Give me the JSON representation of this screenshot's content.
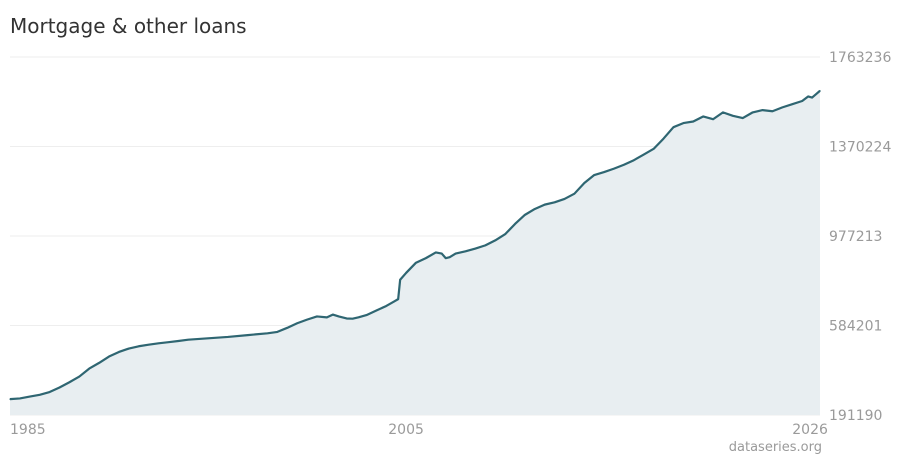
{
  "title": "Mortgage & other loans",
  "source": "dataseries.org",
  "colors": {
    "line": "#2f6672",
    "area": "#e8eef1",
    "grid": "#eeeeee",
    "axis_text": "#9a9a9a",
    "title": "#333333"
  },
  "chart_data": {
    "type": "area",
    "title": "Mortgage & other loans",
    "xlabel": "",
    "ylabel": "",
    "xlim": [
      1985.0,
      2025.9
    ],
    "ylim": [
      191190,
      1763236
    ],
    "x_ticks": [
      {
        "value": 1985,
        "label": "1985"
      },
      {
        "value": 2005,
        "label": "2005"
      },
      {
        "value": 2025.4,
        "label": "2026"
      }
    ],
    "y_ticks": [
      {
        "value": 1763236,
        "label": "1763236"
      },
      {
        "value": 1370224,
        "label": "1370224"
      },
      {
        "value": 977213,
        "label": "977213"
      },
      {
        "value": 584201,
        "label": "584201"
      },
      {
        "value": 191190,
        "label": "191190"
      }
    ],
    "grid": true,
    "series": [
      {
        "x": [
          1985.0,
          1985.5,
          1986.0,
          1986.5,
          1987.0,
          1987.5,
          1988.0,
          1988.5,
          1989.0,
          1989.5,
          1990.0,
          1990.5,
          1991.0,
          1991.5,
          1992.0,
          1992.5,
          1993.0,
          1993.5,
          1994.0,
          1995.0,
          1996.0,
          1997.0,
          1998.0,
          1998.5,
          1999.0,
          1999.5,
          2000.0,
          2000.5,
          2001.0,
          2001.3,
          2001.6,
          2002.0,
          2002.3,
          2002.6,
          2003.0,
          2003.5,
          2004.0,
          2004.4,
          2004.6,
          2004.7,
          2005.0,
          2005.5,
          2006.0,
          2006.5,
          2006.8,
          2007.0,
          2007.2,
          2007.5,
          2008.0,
          2008.5,
          2009.0,
          2009.5,
          2010.0,
          2010.5,
          2011.0,
          2011.5,
          2012.0,
          2012.5,
          2013.0,
          2013.5,
          2014.0,
          2014.5,
          2015.0,
          2015.5,
          2016.0,
          2016.5,
          2017.0,
          2017.5,
          2018.0,
          2018.5,
          2019.0,
          2019.5,
          2020.0,
          2020.5,
          2021.0,
          2021.5,
          2022.0,
          2022.5,
          2023.0,
          2023.5,
          2024.0,
          2024.5,
          2025.0,
          2025.3,
          2025.5,
          2025.7,
          2025.9
        ],
        "y": [
          261000,
          264000,
          272000,
          280000,
          292000,
          312000,
          335000,
          360000,
          395000,
          420000,
          448000,
          468000,
          483000,
          493000,
          500000,
          506000,
          511000,
          516000,
          522000,
          528000,
          534000,
          542000,
          550000,
          556000,
          574000,
          594000,
          610000,
          624000,
          620000,
          632000,
          624000,
          615000,
          614000,
          620000,
          630000,
          650000,
          670000,
          690000,
          700000,
          785000,
          815000,
          860000,
          880000,
          905000,
          900000,
          880000,
          884000,
          900000,
          910000,
          922000,
          936000,
          958000,
          985000,
          1030000,
          1070000,
          1096000,
          1115000,
          1125000,
          1140000,
          1163000,
          1210000,
          1245000,
          1258000,
          1273000,
          1290000,
          1310000,
          1335000,
          1360000,
          1405000,
          1455000,
          1473000,
          1480000,
          1502000,
          1490000,
          1520000,
          1505000,
          1495000,
          1520000,
          1530000,
          1525000,
          1542000,
          1556000,
          1570000,
          1590000,
          1585000,
          1600000,
          1615000
        ]
      }
    ]
  }
}
